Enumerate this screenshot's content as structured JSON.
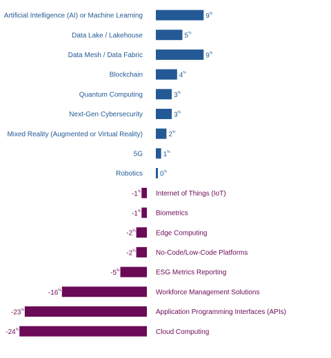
{
  "chart_data": {
    "type": "bar",
    "orientation": "horizontal",
    "title": "",
    "xlabel": "",
    "ylabel": "",
    "unit": "%",
    "xlim": [
      -24,
      9
    ],
    "grid": false,
    "legend": "none",
    "colors": {
      "positive": "#235a96",
      "negative": "#6b0a56"
    },
    "categories": [
      "Artificial Intelligence (AI) or Machine Learning",
      "Data Lake / Lakehouse",
      "Data Mesh / Data Fabric",
      "Blockchain",
      "Quantum Computing",
      "Next-Gen Cybersecurity",
      "Mixed Reality (Augmented or Virtual Reality)",
      "5G",
      "Robotics",
      "Internet of Things (IoT)",
      "Biometrics",
      "Edge Computing",
      "No-Code/Low-Code Platforms",
      "ESG Metrics Reporting",
      "Workforce Management Solutions",
      "Application Programming Interfaces (APIs)",
      "Cloud Computing"
    ],
    "values": [
      9,
      5,
      9,
      4,
      3,
      3,
      2,
      1,
      0,
      -1,
      -1,
      -2,
      -2,
      -5,
      -16,
      -23,
      -24
    ],
    "value_labels": [
      "9",
      "5",
      "9",
      "4",
      "3",
      "3",
      "2",
      "1",
      "0",
      "-1",
      "-1",
      "-2",
      "-2",
      "-5",
      "-16",
      "-23",
      "-24"
    ]
  }
}
